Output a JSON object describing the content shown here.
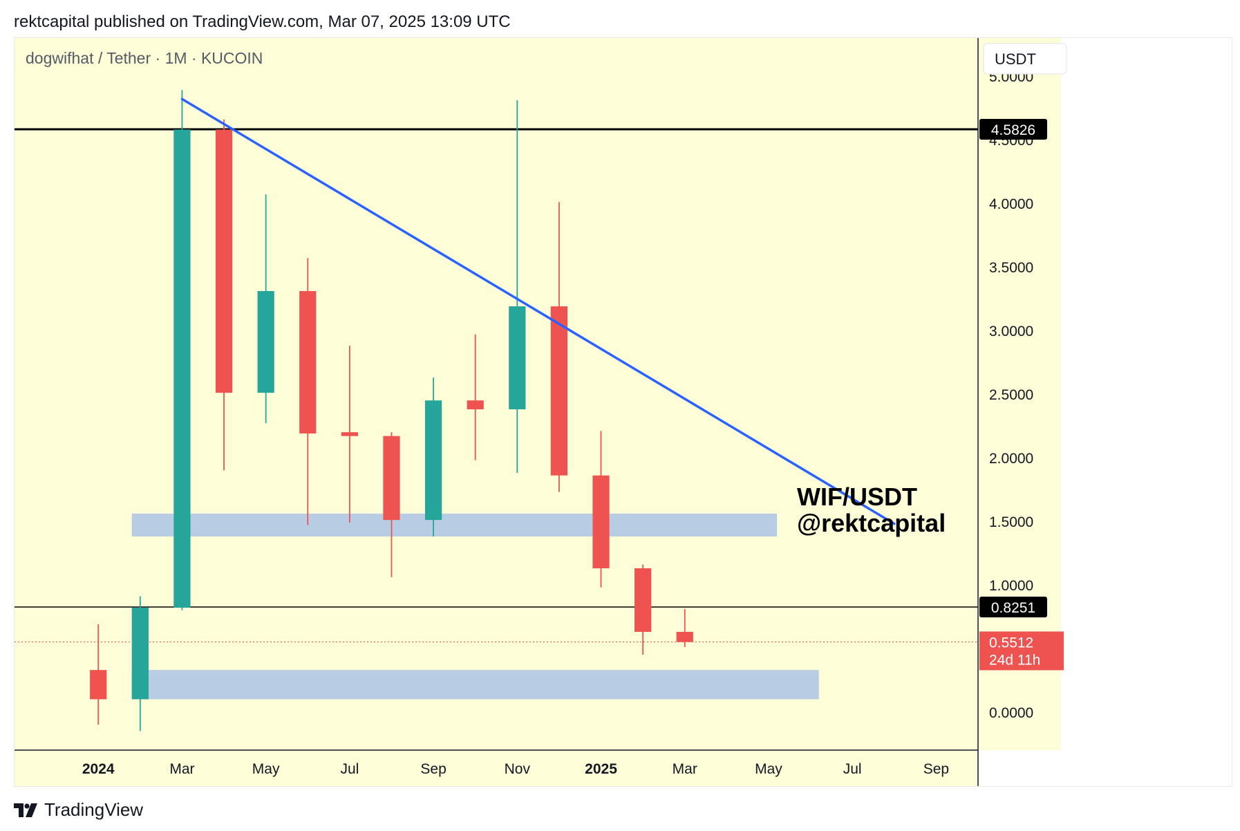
{
  "header": {
    "published_text": "rektcapital published on TradingView.com, Mar 07, 2025 13:09 UTC"
  },
  "chart_legend": {
    "symbol_text": "dogwifhat / Tether · 1M · KUCOIN"
  },
  "currency_button": {
    "label": "USDT"
  },
  "watermark": {
    "line1": "WIF/USDT",
    "line2": "@rektcapital"
  },
  "price_labels": {
    "resistance": "4.5826",
    "support": "0.8251",
    "last_price": "0.5512",
    "countdown": "24d 11h"
  },
  "footer": {
    "brand": "TradingView",
    "logo_icon": "tradingview-logo-icon"
  },
  "colors": {
    "background": "#fdfdd8",
    "bullish": "#26a69a",
    "bearish": "#ef5350",
    "trendline": "#2962ff",
    "zone": "#b8cce4",
    "horizontal_line": "#000000",
    "last_price": "#ef5350"
  },
  "chart_data": {
    "type": "candlestick",
    "title": "dogwifhat / Tether · 1M · KUCOIN",
    "interval": "1M",
    "y_axis": {
      "unit": "USDT",
      "range": [
        -0.3,
        5.3
      ],
      "ticks": [
        {
          "value": 0.0,
          "label": "0.0000"
        },
        {
          "value": 1.0,
          "label": "1.0000"
        },
        {
          "value": 1.5,
          "label": "1.5000"
        },
        {
          "value": 2.0,
          "label": "2.0000"
        },
        {
          "value": 2.5,
          "label": "2.5000"
        },
        {
          "value": 3.0,
          "label": "3.0000"
        },
        {
          "value": 3.5,
          "label": "3.5000"
        },
        {
          "value": 4.0,
          "label": "4.0000"
        },
        {
          "value": 4.5,
          "label": "4.5000"
        },
        {
          "value": 5.0,
          "label": "5.0000"
        }
      ]
    },
    "x_axis": {
      "range": [
        "2023-11",
        "2025-10"
      ],
      "ticks": [
        {
          "month": "2024-01",
          "label": "2024",
          "bold": true
        },
        {
          "month": "2024-03",
          "label": "Mar",
          "bold": false
        },
        {
          "month": "2024-05",
          "label": "May",
          "bold": false
        },
        {
          "month": "2024-07",
          "label": "Jul",
          "bold": false
        },
        {
          "month": "2024-09",
          "label": "Sep",
          "bold": false
        },
        {
          "month": "2024-11",
          "label": "Nov",
          "bold": false
        },
        {
          "month": "2025-01",
          "label": "2025",
          "bold": true
        },
        {
          "month": "2025-03",
          "label": "Mar",
          "bold": false
        },
        {
          "month": "2025-05",
          "label": "May",
          "bold": false
        },
        {
          "month": "2025-07",
          "label": "Jul",
          "bold": false
        },
        {
          "month": "2025-09",
          "label": "Sep",
          "bold": false
        }
      ]
    },
    "candles": [
      {
        "month": "2024-01",
        "open": 0.33,
        "high": 0.69,
        "low": -0.1,
        "close": 0.1
      },
      {
        "month": "2024-02",
        "open": 0.1,
        "high": 0.91,
        "low": -0.15,
        "close": 0.82
      },
      {
        "month": "2024-03",
        "open": 0.82,
        "high": 4.89,
        "low": 0.8,
        "close": 4.58
      },
      {
        "month": "2024-04",
        "open": 4.58,
        "high": 4.66,
        "low": 1.9,
        "close": 2.51
      },
      {
        "month": "2024-05",
        "open": 2.51,
        "high": 4.07,
        "low": 2.27,
        "close": 3.31
      },
      {
        "month": "2024-06",
        "open": 3.31,
        "high": 3.57,
        "low": 1.47,
        "close": 2.19
      },
      {
        "month": "2024-07",
        "open": 2.2,
        "high": 2.88,
        "low": 1.49,
        "close": 2.17
      },
      {
        "month": "2024-08",
        "open": 2.17,
        "high": 2.2,
        "low": 1.06,
        "close": 1.51
      },
      {
        "month": "2024-09",
        "open": 1.51,
        "high": 2.63,
        "low": 1.38,
        "close": 2.45
      },
      {
        "month": "2024-10",
        "open": 2.45,
        "high": 2.97,
        "low": 1.98,
        "close": 2.38
      },
      {
        "month": "2024-11",
        "open": 2.38,
        "high": 4.81,
        "low": 1.88,
        "close": 3.19
      },
      {
        "month": "2024-12",
        "open": 3.19,
        "high": 4.01,
        "low": 1.73,
        "close": 1.86
      },
      {
        "month": "2025-01",
        "open": 1.86,
        "high": 2.21,
        "low": 0.98,
        "close": 1.13
      },
      {
        "month": "2025-02",
        "open": 1.13,
        "high": 1.16,
        "low": 0.45,
        "close": 0.63
      },
      {
        "month": "2025-03",
        "open": 0.63,
        "high": 0.81,
        "low": 0.51,
        "close": 0.55
      }
    ],
    "horizontal_lines": [
      {
        "price": 4.5826,
        "label": "4.5826"
      },
      {
        "price": 0.8251,
        "label": "0.8251"
      }
    ],
    "last_price": {
      "price": 0.5512,
      "label": "0.5512",
      "countdown": "24d 11h"
    },
    "zones": [
      {
        "from_month": "2024-02",
        "to_month": "2025-05",
        "low": 1.38,
        "high": 1.56
      },
      {
        "from_month": "2024-02",
        "to_month": "2025-06",
        "low": 0.1,
        "high": 0.33
      }
    ],
    "trendline": {
      "from": {
        "month": "2024-03",
        "price": 4.82
      },
      "to": {
        "month": "2025-08",
        "price": 1.48
      }
    },
    "grid": false
  }
}
